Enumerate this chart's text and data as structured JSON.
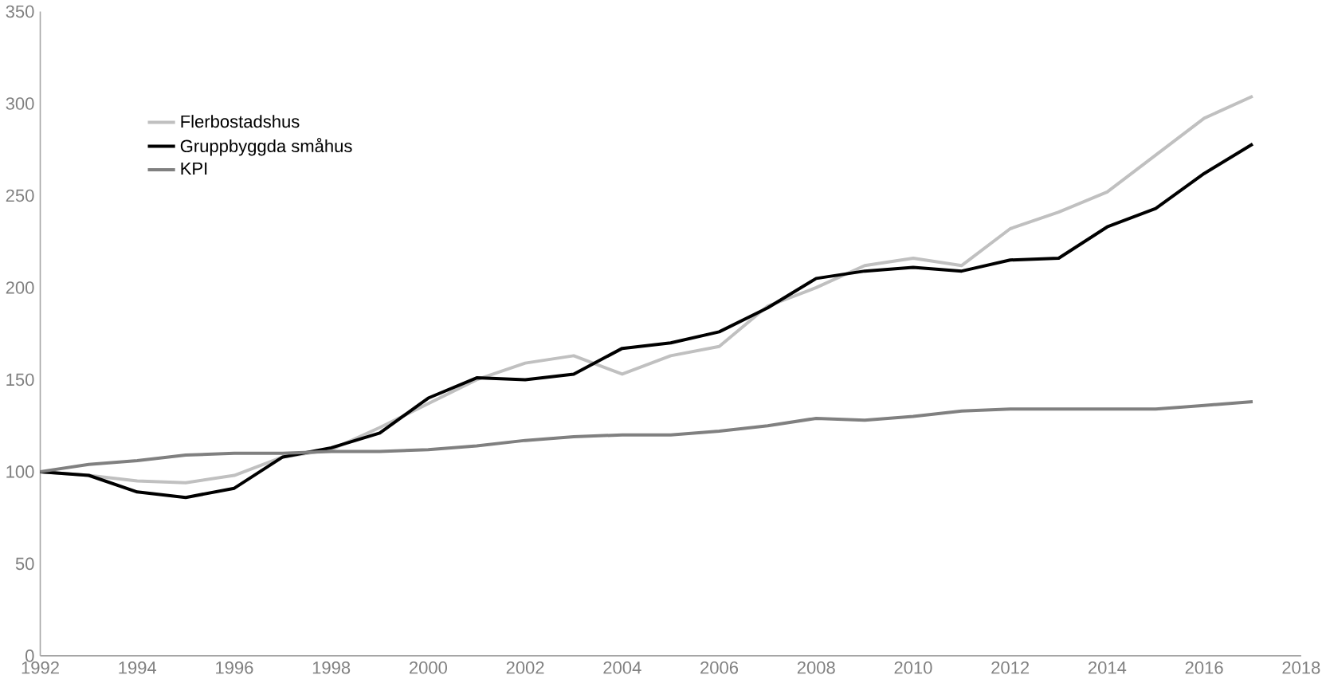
{
  "chart_data": {
    "type": "line",
    "x": [
      1992,
      1993,
      1994,
      1995,
      1996,
      1997,
      1998,
      1999,
      2000,
      2001,
      2002,
      2003,
      2004,
      2005,
      2006,
      2007,
      2008,
      2009,
      2010,
      2011,
      2012,
      2013,
      2014,
      2015,
      2016,
      2017
    ],
    "series": [
      {
        "name": "Flerbostadshus",
        "color": "#c0c0c0",
        "values": [
          100,
          98,
          95,
          94,
          98,
          108,
          112,
          124,
          137,
          150,
          159,
          163,
          153,
          163,
          168,
          190,
          200,
          212,
          216,
          212,
          232,
          241,
          252,
          272,
          292,
          304
        ]
      },
      {
        "name": "Gruppbyggda småhus",
        "color": "#000000",
        "values": [
          100,
          98,
          89,
          86,
          91,
          108,
          113,
          121,
          140,
          151,
          150,
          153,
          167,
          170,
          176,
          189,
          205,
          209,
          211,
          209,
          215,
          216,
          233,
          243,
          262,
          278
        ]
      },
      {
        "name": "KPI",
        "color": "#808080",
        "values": [
          100,
          104,
          106,
          109,
          110,
          110,
          111,
          111,
          112,
          114,
          117,
          119,
          120,
          120,
          122,
          125,
          129,
          128,
          130,
          133,
          134,
          134,
          134,
          134,
          136,
          138
        ]
      }
    ],
    "xlim": [
      1992,
      2018
    ],
    "xticks": [
      1992,
      1994,
      1996,
      1998,
      2000,
      2002,
      2004,
      2006,
      2008,
      2010,
      2012,
      2014,
      2016,
      2018
    ],
    "ylim": [
      0,
      350
    ],
    "yticks": [
      0,
      50,
      100,
      150,
      200,
      250,
      300,
      350
    ],
    "grid": false,
    "legend": "top left",
    "marker": "none",
    "line_style": "solid"
  }
}
